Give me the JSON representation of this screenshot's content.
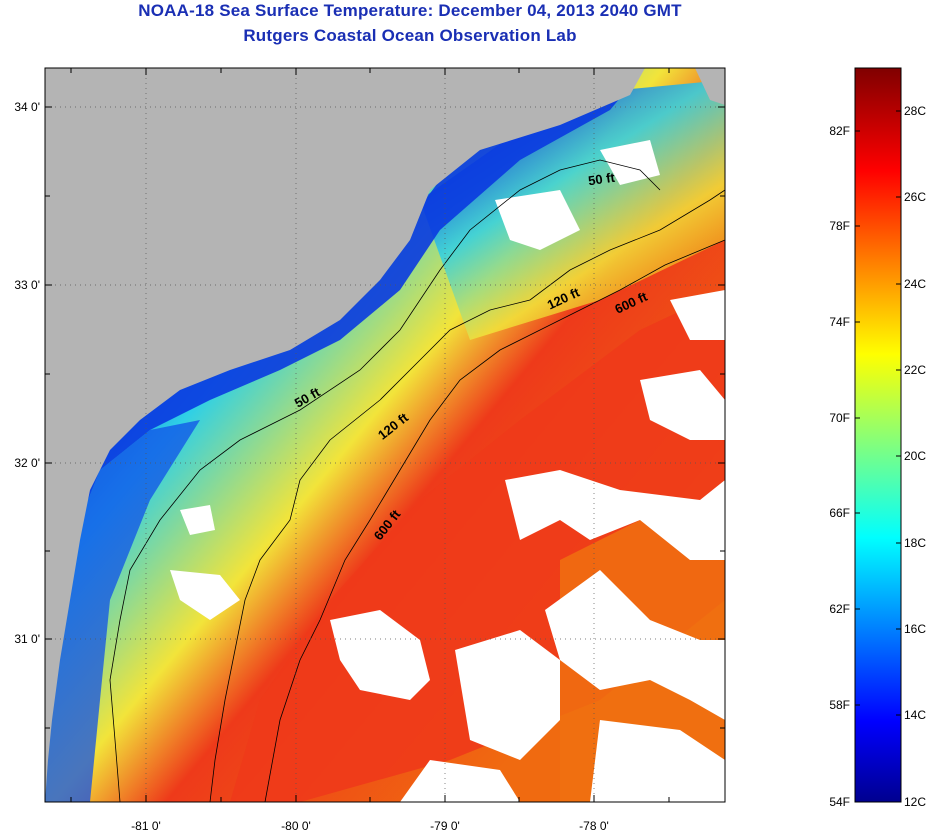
{
  "title": {
    "line1": "NOAA-18 Sea Surface Temperature:  December 04, 2013 2040 GMT",
    "line2": "Rutgers Coastal Ocean Observation Lab"
  },
  "map": {
    "lon_labels": [
      "-81 0'",
      "-80 0'",
      "-79 0'",
      "-78 0'"
    ],
    "lat_labels": [
      "34 0'",
      "33 0'",
      "32 0'",
      "31 0'"
    ],
    "contour_labels": [
      "50 ft",
      "50 ft",
      "120 ft",
      "120 ft",
      "600 ft",
      "600 ft"
    ],
    "colors": {
      "land": "#b4b4b4",
      "cloud": "#ffffff",
      "nearshore": "#0a2fd8",
      "shelf": "#2fd0e6",
      "mid_shelf": "#f2e43a",
      "gulf_stream": "#ee3a1a"
    }
  },
  "colorbar": {
    "fahrenheit_labels": [
      "82F",
      "78F",
      "74F",
      "70F",
      "66F",
      "62F",
      "58F",
      "54F"
    ],
    "celsius_labels": [
      "28C",
      "26C",
      "24C",
      "22C",
      "20C",
      "18C",
      "16C",
      "14C",
      "12C"
    ],
    "range_c": [
      12,
      29
    ],
    "colormap": [
      "#00008f",
      "#0000ff",
      "#00ffff",
      "#ffff00",
      "#ff0000",
      "#800000"
    ]
  }
}
